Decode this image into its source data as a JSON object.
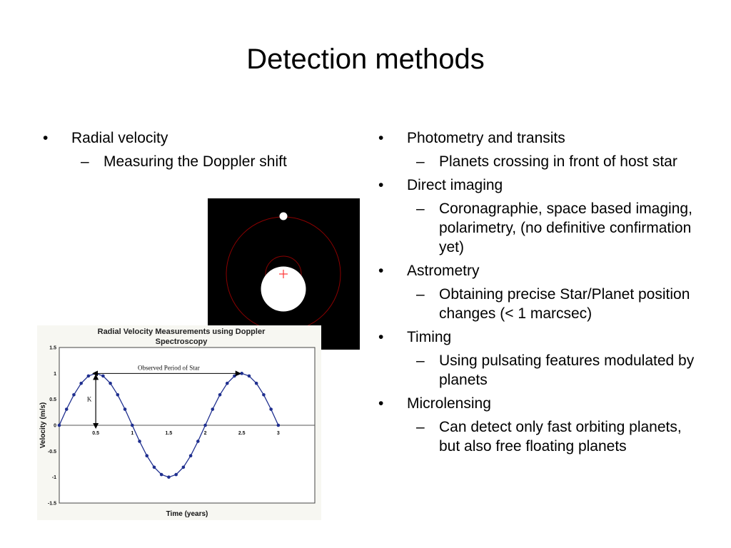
{
  "slide": {
    "title": "Detection methods",
    "left_list": [
      {
        "label": "Radial velocity",
        "subitems": [
          "Measuring the Doppler shift"
        ]
      }
    ],
    "right_list": [
      {
        "label": "Photometry and transits",
        "subitems": [
          "Planets crossing in front of host star"
        ]
      },
      {
        "label": "Direct imaging",
        "subitems": [
          "Coronagraphie, space based imaging, polarimetry, (no definitive confirmation yet)"
        ]
      },
      {
        "label": "Astrometry",
        "subitems": [
          "Obtaining precise Star/Planet position changes (< 1 marcsec)"
        ]
      },
      {
        "label": "Timing",
        "subitems": [
          "Using pulsating features modulated by planets"
        ]
      },
      {
        "label": "Microlensing",
        "subitems": [
          "Can detect only fast orbiting planets, but also free floating planets"
        ]
      }
    ],
    "bullet_symbol": "•",
    "dash_symbol": "–"
  },
  "orbit_image": {
    "background": "#000000",
    "star_color": "#ffffff",
    "planet_color": "#ffffff",
    "orbit_color": "#8b0000",
    "marker_color": "#ff3333"
  },
  "chart_data": {
    "type": "line",
    "title": "Radial Velocity Measurements using Doppler Spectroscopy",
    "title_lines": [
      "Radial Velocity Measurements using Doppler",
      "Spectroscopy"
    ],
    "xlabel": "Time (years)",
    "ylabel": "Velocity (m/s)",
    "xlim": [
      0,
      3.5
    ],
    "ylim": [
      -1.5,
      1.5
    ],
    "x_ticks": [
      0.5,
      1,
      1.5,
      2,
      2.5,
      3
    ],
    "x_tick_labels": [
      "0.5",
      "1",
      "1.5",
      "2",
      "2.5",
      "3"
    ],
    "y_ticks": [
      1.5,
      1,
      0.5,
      0,
      -0.5,
      -1,
      -1.5
    ],
    "y_tick_labels": [
      "1.5",
      "1",
      "0.5",
      "0",
      "-0.5",
      "-1",
      "-1.5"
    ],
    "grid": false,
    "series": [
      {
        "x": [
          0,
          0.1,
          0.2,
          0.3,
          0.4,
          0.5,
          0.6,
          0.7,
          0.8,
          0.9,
          1.0,
          1.1,
          1.2,
          1.3,
          1.4,
          1.5,
          1.6,
          1.7,
          1.8,
          1.9,
          2.0,
          2.1,
          2.2,
          2.3,
          2.4,
          2.5,
          2.6,
          2.7,
          2.8,
          2.9,
          3.0
        ],
        "y": [
          0,
          0.309,
          0.588,
          0.809,
          0.951,
          1.0,
          0.951,
          0.809,
          0.588,
          0.309,
          0,
          -0.309,
          -0.588,
          -0.809,
          -0.951,
          -1.0,
          -0.951,
          -0.809,
          -0.588,
          -0.309,
          0,
          0.309,
          0.588,
          0.809,
          0.951,
          1.0,
          0.951,
          0.809,
          0.588,
          0.309,
          0
        ],
        "color": "#1f2f8f"
      }
    ],
    "annotations": {
      "period_label": "Observed Period of Star",
      "period_from": 0.5,
      "period_to": 2.5,
      "period_y": 1.0,
      "amplitude_label": "K",
      "amplitude_x": 0.5,
      "amplitude_from": 0,
      "amplitude_to": 1.0
    }
  }
}
